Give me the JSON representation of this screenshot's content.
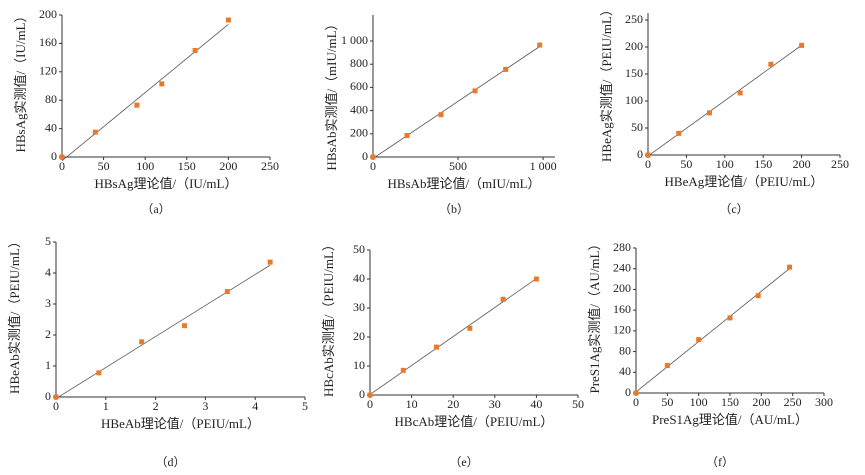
{
  "chart_data": [
    {
      "type": "scatter",
      "caption": "（a）",
      "xlabel": "HBsAg理论值/（IU/mL）",
      "ylabel": "HBsAg实测值/（IU/mL）",
      "color": "#e8792b",
      "x": [
        0,
        40,
        90,
        120,
        160,
        200
      ],
      "values": [
        0,
        35,
        73,
        103,
        150,
        193
      ],
      "xlim": [
        0,
        250
      ],
      "xticks": [
        0,
        50,
        100,
        150,
        200,
        250
      ],
      "ylim": [
        0,
        200
      ],
      "yticks": [
        0,
        40,
        80,
        120,
        160,
        200
      ]
    },
    {
      "type": "scatter",
      "caption": "（b）",
      "xlabel": "HBsAb理论值/（mIU/mL）",
      "ylabel": "HBsAb实测值/（mIU/mL）",
      "color": "#e8792b",
      "x": [
        0,
        200,
        400,
        600,
        780,
        980
      ],
      "values": [
        0,
        185,
        365,
        570,
        755,
        965
      ],
      "xlim": [
        0,
        1070
      ],
      "xticks": [
        0,
        500,
        {
          "value": 1000,
          "label": "1 000"
        }
      ],
      "ylim": [
        0,
        1000
      ],
      "yticks": [
        0,
        200,
        400,
        600,
        800,
        {
          "value": 1000,
          "label": "1 000"
        }
      ]
    },
    {
      "type": "scatter",
      "caption": "（c）",
      "xlabel": "HBeAg理论值/（PEIU/mL）",
      "ylabel": "HBeAg实测值/（PEIU/mL）",
      "color": "#e8792b",
      "x": [
        0,
        40,
        80,
        120,
        160,
        200
      ],
      "values": [
        0,
        40,
        78,
        115,
        168,
        203
      ],
      "xlim": [
        0,
        250
      ],
      "xticks": [
        0,
        50,
        100,
        150,
        200,
        250
      ],
      "ylim": [
        0,
        250
      ],
      "yticks": [
        0,
        50,
        100,
        150,
        200,
        250
      ]
    },
    {
      "type": "scatter",
      "caption": "（d）",
      "xlabel": "HBeAb理论值/（PEIU/mL）",
      "ylabel": "HBeAb实测值/（PEIU/mL）",
      "color": "#e8792b",
      "x": [
        0,
        0.86,
        1.72,
        2.58,
        3.44,
        4.3
      ],
      "values": [
        0,
        0.78,
        1.78,
        2.3,
        3.4,
        4.35
      ],
      "xlim": [
        0,
        5
      ],
      "xticks": [
        0,
        1,
        2,
        3,
        4,
        5
      ],
      "ylim": [
        0,
        5
      ],
      "yticks": [
        0,
        1,
        2,
        3,
        4,
        5
      ]
    },
    {
      "type": "scatter",
      "caption": "（e）",
      "xlabel": "HBcAb理论值/（PEIU/mL）",
      "ylabel": "HBcAb实测值/（PEIU/mL）",
      "color": "#e8792b",
      "x": [
        0,
        8,
        16,
        24,
        32,
        40
      ],
      "values": [
        0,
        8.5,
        16.5,
        23,
        33,
        40
      ],
      "xlim": [
        0,
        50
      ],
      "xticks": [
        0,
        10,
        20,
        30,
        40,
        50
      ],
      "ylim": [
        0,
        50
      ],
      "yticks": [
        0,
        10,
        20,
        30,
        40,
        50
      ]
    },
    {
      "type": "scatter",
      "caption": "（f）",
      "xlabel": "PreS1Ag理论值/（AU/mL）",
      "ylabel": "PreS1Ag实测值/（AU/mL）",
      "color": "#e8792b",
      "x": [
        0,
        50,
        100,
        150,
        195,
        245
      ],
      "values": [
        0,
        53,
        103,
        145,
        188,
        243
      ],
      "xlim": [
        0,
        300
      ],
      "xticks": [
        0,
        50,
        100,
        150,
        200,
        250,
        300
      ],
      "ylim": [
        0,
        280
      ],
      "yticks": [
        0,
        40,
        80,
        120,
        160,
        200,
        240,
        280
      ]
    }
  ]
}
